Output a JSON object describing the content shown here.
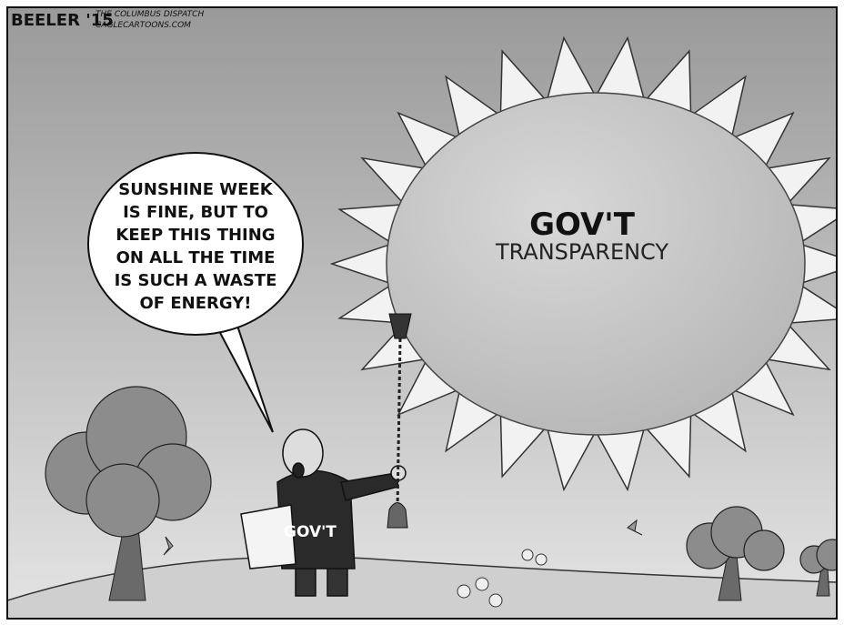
{
  "credit": {
    "signature": "BEELER '15",
    "publication": "THE COLUMBUS DISPATCH",
    "website": "CAGLECARTOONS.COM"
  },
  "speech_bubble": {
    "lines": [
      "SUNSHINE WEEK",
      "IS FINE, BUT TO",
      "KEEP THIS THING",
      "ON ALL THE TIME",
      "IS SUCH A WASTE",
      "OF ENERGY!"
    ]
  },
  "sun": {
    "label_lines": [
      "GOV'T",
      "TRANSPARENCY"
    ]
  },
  "figure": {
    "folder_label": "GOV'T"
  }
}
